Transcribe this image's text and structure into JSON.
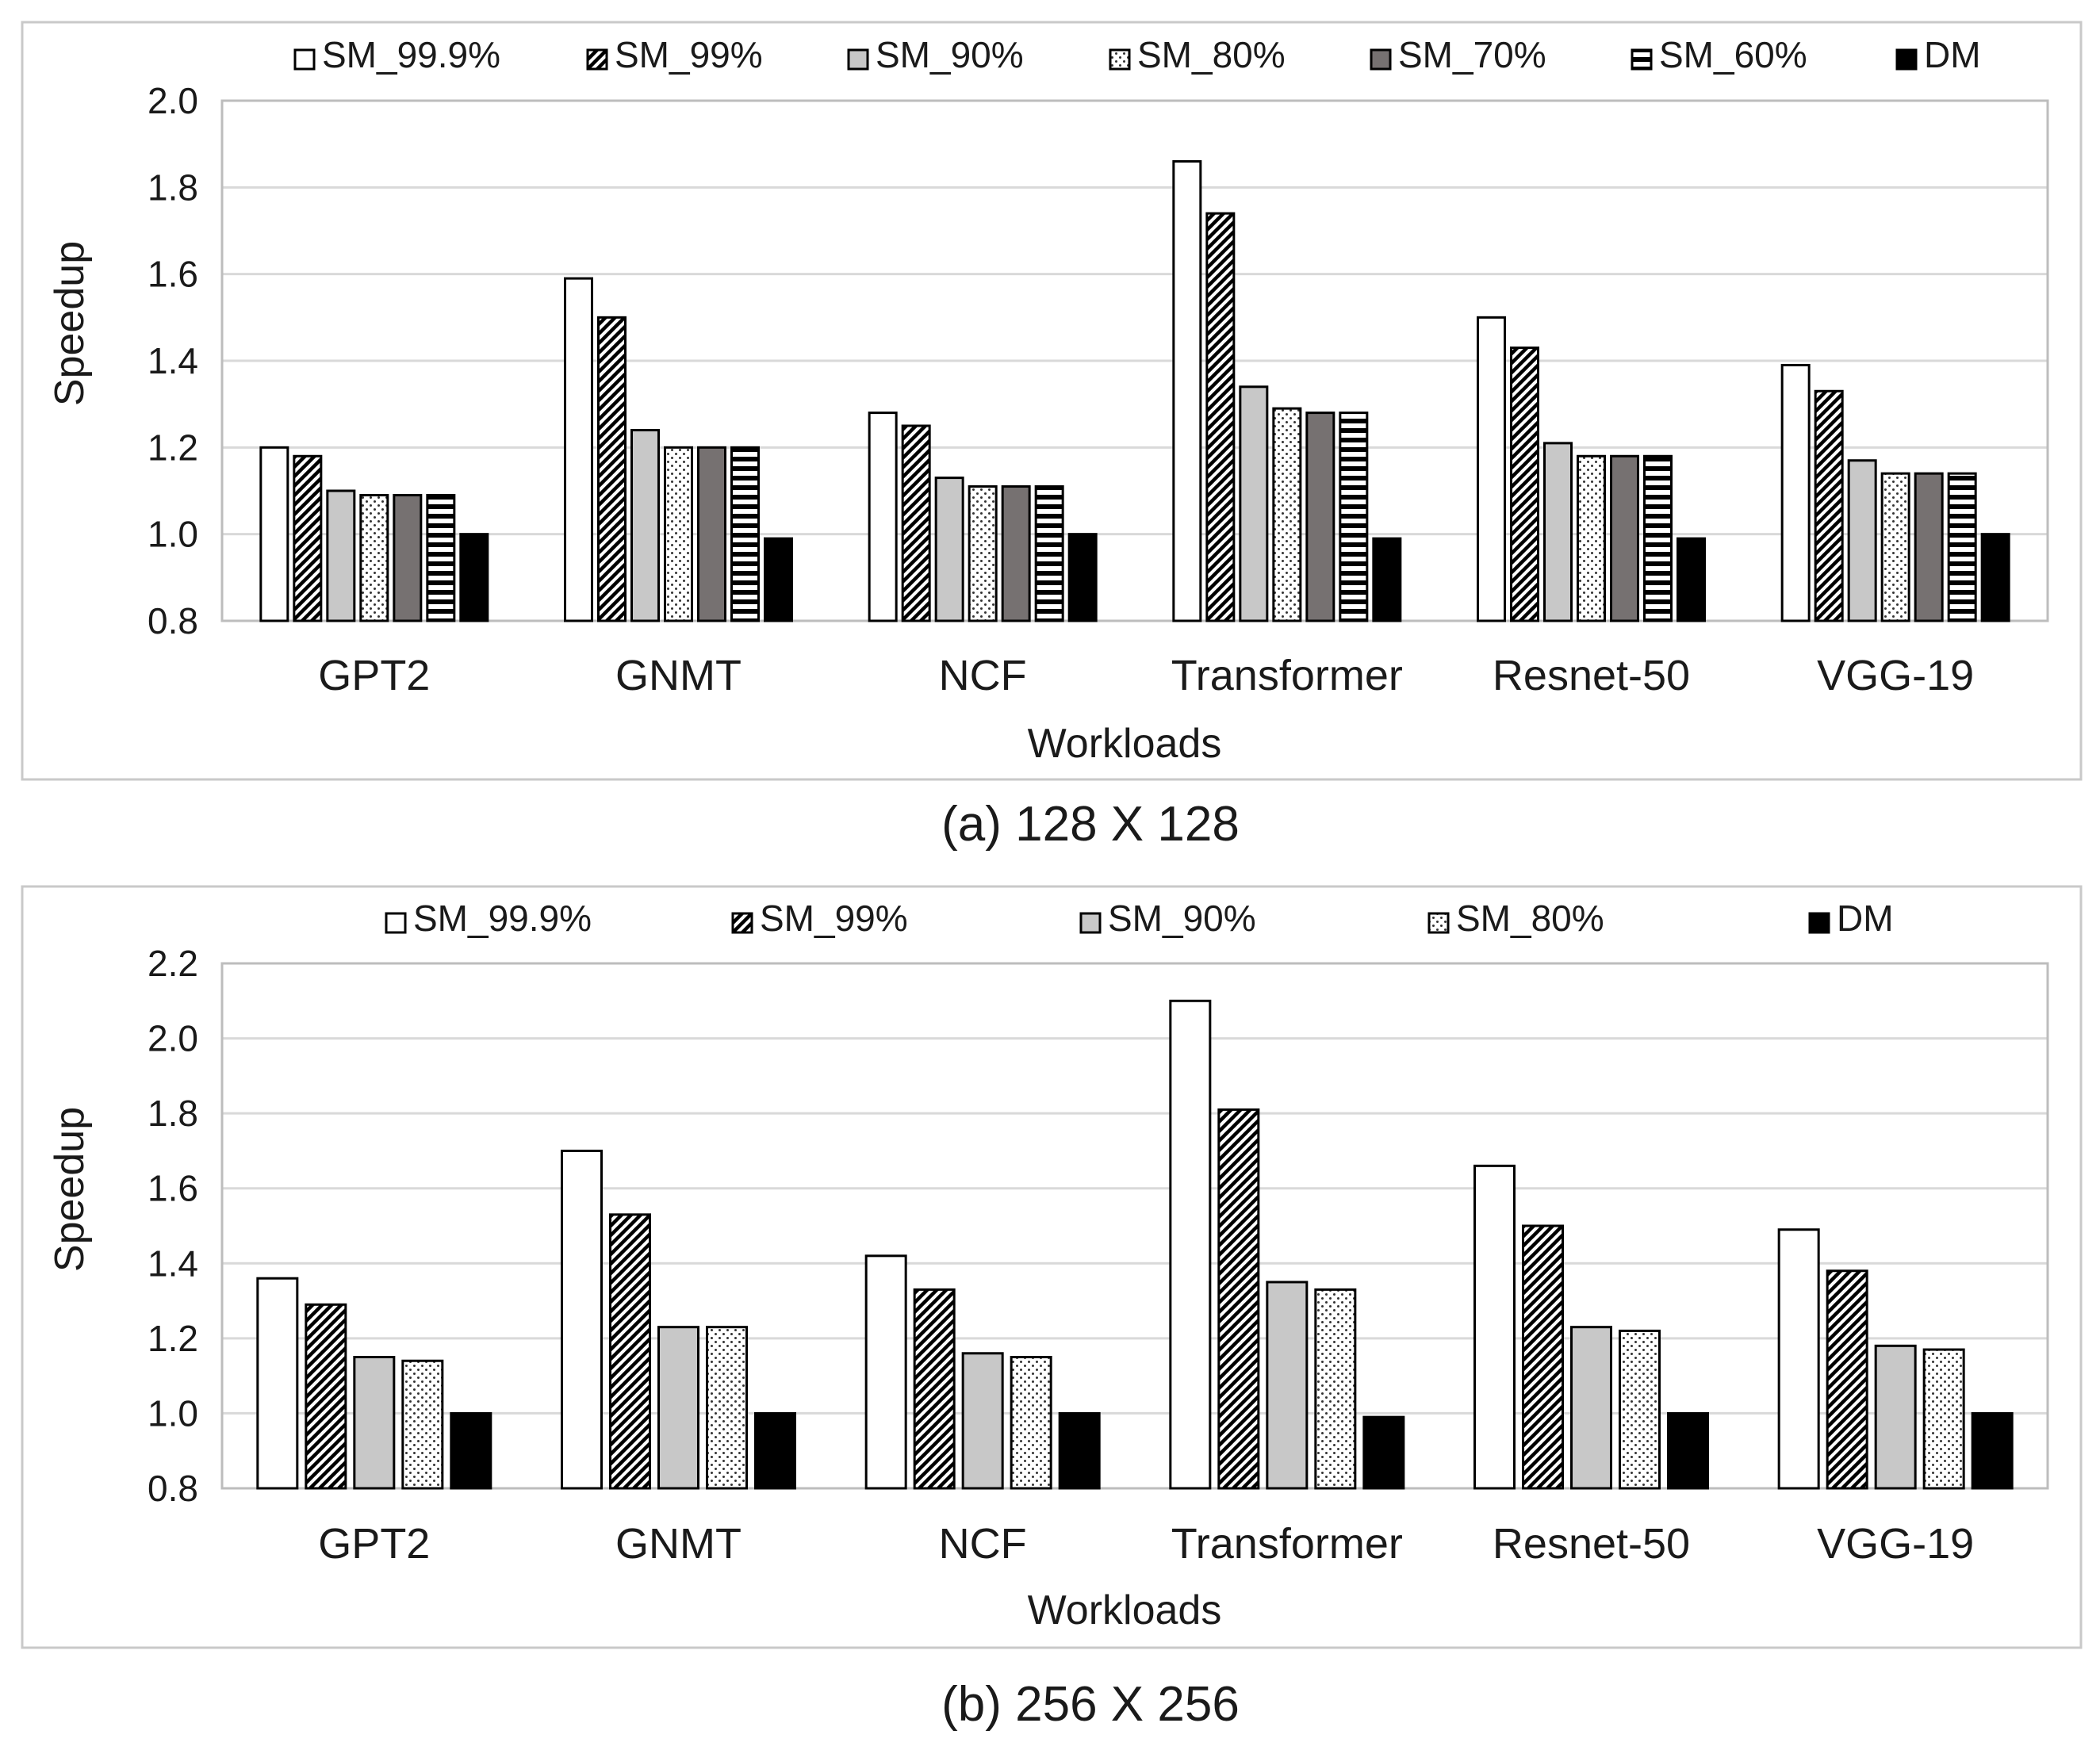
{
  "chart_data": [
    {
      "type": "bar",
      "caption": "(a) 128 X 128",
      "xlabel": "Workloads",
      "ylabel": "Speedup",
      "ylim": [
        0.8,
        2.0
      ],
      "yticks": [
        "0.8",
        "1.0",
        "1.2",
        "1.4",
        "1.6",
        "1.8",
        "2.0"
      ],
      "ytick_values": [
        0.8,
        1.0,
        1.2,
        1.4,
        1.6,
        1.8,
        2.0
      ],
      "categories": [
        "GPT2",
        "GNMT",
        "NCF",
        "Transformer",
        "Resnet-50",
        "VGG-19"
      ],
      "legend_position": "top",
      "series": [
        {
          "name": "SM_99.9%",
          "pattern": "white",
          "values": [
            1.2,
            1.59,
            1.28,
            1.86,
            1.5,
            1.39
          ]
        },
        {
          "name": "SM_99%",
          "pattern": "diagonal",
          "values": [
            1.18,
            1.5,
            1.25,
            1.74,
            1.43,
            1.33
          ]
        },
        {
          "name": "SM_90%",
          "pattern": "light",
          "values": [
            1.1,
            1.24,
            1.13,
            1.34,
            1.21,
            1.17
          ]
        },
        {
          "name": "SM_80%",
          "pattern": "dotted",
          "values": [
            1.09,
            1.2,
            1.11,
            1.29,
            1.18,
            1.14
          ]
        },
        {
          "name": "SM_70%",
          "pattern": "dark",
          "values": [
            1.09,
            1.2,
            1.11,
            1.28,
            1.18,
            1.14
          ]
        },
        {
          "name": "SM_60%",
          "pattern": "hstripe",
          "values": [
            1.09,
            1.2,
            1.11,
            1.28,
            1.18,
            1.14
          ]
        },
        {
          "name": "DM",
          "pattern": "black",
          "values": [
            1.0,
            0.99,
            1.0,
            0.99,
            0.99,
            1.0
          ]
        }
      ]
    },
    {
      "type": "bar",
      "caption": "(b) 256 X 256",
      "xlabel": "Workloads",
      "ylabel": "Speedup",
      "ylim": [
        0.8,
        2.2
      ],
      "yticks": [
        "0.8",
        "1.0",
        "1.2",
        "1.4",
        "1.6",
        "1.8",
        "2.0",
        "2.2"
      ],
      "ytick_values": [
        0.8,
        1.0,
        1.2,
        1.4,
        1.6,
        1.8,
        2.0,
        2.2
      ],
      "categories": [
        "GPT2",
        "GNMT",
        "NCF",
        "Transformer",
        "Resnet-50",
        "VGG-19"
      ],
      "legend_position": "top",
      "series": [
        {
          "name": "SM_99.9%",
          "pattern": "white",
          "values": [
            1.36,
            1.7,
            1.42,
            2.1,
            1.66,
            1.49
          ]
        },
        {
          "name": "SM_99%",
          "pattern": "diagonal",
          "values": [
            1.29,
            1.53,
            1.33,
            1.81,
            1.5,
            1.38
          ]
        },
        {
          "name": "SM_90%",
          "pattern": "light",
          "values": [
            1.15,
            1.23,
            1.16,
            1.35,
            1.23,
            1.18
          ]
        },
        {
          "name": "SM_80%",
          "pattern": "dotted",
          "values": [
            1.14,
            1.23,
            1.15,
            1.33,
            1.22,
            1.17
          ]
        },
        {
          "name": "DM",
          "pattern": "black",
          "values": [
            1.0,
            1.0,
            1.0,
            0.99,
            1.0,
            1.0
          ]
        }
      ]
    }
  ]
}
